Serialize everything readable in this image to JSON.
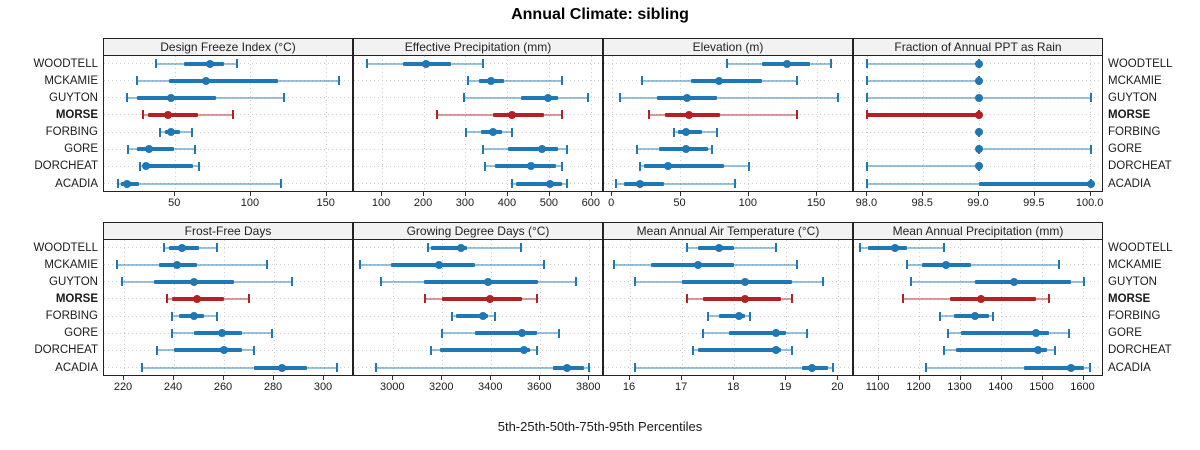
{
  "title": "Annual Climate: sibling",
  "footer": "5th-25th-50th-75th-95th Percentiles",
  "chart_data": {
    "type": "scatter",
    "subtype": "percentile-interval-dotplot",
    "title": "Annual Climate: sibling",
    "xlabel": "5th-25th-50th-75th-95th Percentiles",
    "legend_position": "none",
    "grid": "dotted",
    "percentiles": [
      "p5",
      "p25",
      "p50",
      "p75",
      "p95"
    ],
    "sites": [
      "WOODTELL",
      "MCKAMIE",
      "GUYTON",
      "MORSE",
      "FORBING",
      "GORE",
      "DORCHEAT",
      "ACADIA"
    ],
    "highlight_site": "MORSE",
    "colors": {
      "series": "#1f77b4",
      "highlight": "#b22222",
      "strip_bg": "#f2f2f2",
      "grid": "#cccccc",
      "border": "#222222"
    },
    "rows": [
      {
        "panels": [
          {
            "label": "Design Freeze Index (°C)",
            "xlim": [
              3,
              168
            ],
            "tick_values": [
              50,
              100,
              150
            ],
            "tick_labels": [
              "50",
              "100",
              "150"
            ],
            "values": {
              "WOODTELL": [
                37,
                56,
                73,
                82,
                91
              ],
              "MCKAMIE": [
                25,
                46,
                70,
                118,
                158
              ],
              "GUYTON": [
                18,
                25,
                47,
                77,
                122
              ],
              "MORSE": [
                29,
                32,
                45,
                65,
                88
              ],
              "FORBING": [
                40,
                43,
                47,
                53,
                61
              ],
              "GORE": [
                19,
                25,
                33,
                49,
                63
              ],
              "DORCHEAT": [
                27,
                29,
                31,
                62,
                66
              ],
              "ACADIA": [
                12,
                14,
                18,
                26,
                120
              ]
            }
          },
          {
            "label": "Effective Precipitation (mm)",
            "xlim": [
              33,
              629
            ],
            "tick_values": [
              100,
              200,
              300,
              400,
              500,
              600
            ],
            "tick_labels": [
              "100",
              "200",
              "300",
              "400",
              "500",
              "600"
            ],
            "values": {
              "WOODTELL": [
                65,
                150,
                205,
                265,
                340
              ],
              "MCKAMIE": [
                305,
                330,
                360,
                390,
                530
              ],
              "GUYTON": [
                295,
                430,
                495,
                520,
                590
              ],
              "MORSE": [
                230,
                365,
                410,
                485,
                530
              ],
              "FORBING": [
                300,
                335,
                365,
                385,
                410
              ],
              "GORE": [
                340,
                400,
                480,
                520,
                540
              ],
              "DORCHEAT": [
                345,
                370,
                455,
                515,
                530
              ],
              "ACADIA": [
                410,
                420,
                500,
                530,
                540
              ]
            }
          },
          {
            "label": "Elevation (m)",
            "xlim": [
              -6,
              177
            ],
            "tick_values": [
              0,
              50,
              100,
              150
            ],
            "tick_labels": [
              "0",
              "50",
              "100",
              "150"
            ],
            "values": {
              "WOODTELL": [
                84,
                110,
                128,
                145,
                160
              ],
              "MCKAMIE": [
                22,
                58,
                78,
                110,
                135
              ],
              "GUYTON": [
                6,
                33,
                55,
                77,
                165
              ],
              "MORSE": [
                27,
                39,
                56,
                79,
                135
              ],
              "FORBING": [
                45,
                48,
                54,
                66,
                77
              ],
              "GORE": [
                18,
                34,
                54,
                70,
                73
              ],
              "DORCHEAT": [
                20,
                23,
                41,
                82,
                100
              ],
              "ACADIA": [
                3,
                9,
                20,
                38,
                90
              ]
            }
          },
          {
            "label": "Fraction of Annual PPT as Rain",
            "xlim": [
              97.88,
              100.12
            ],
            "tick_values": [
              98.0,
              98.5,
              99.0,
              99.5,
              100.0
            ],
            "tick_labels": [
              "98.0",
              "98.5",
              "99.0",
              "99.5",
              "100.0"
            ],
            "values": {
              "WOODTELL": [
                98,
                99,
                99,
                99,
                99
              ],
              "MCKAMIE": [
                98,
                99,
                99,
                99,
                99
              ],
              "GUYTON": [
                98,
                99,
                99,
                99,
                100
              ],
              "MORSE": [
                98,
                98,
                99,
                99,
                99
              ],
              "FORBING": [
                99,
                99,
                99,
                99,
                99
              ],
              "GORE": [
                99,
                99,
                99,
                99,
                100
              ],
              "DORCHEAT": [
                98,
                99,
                99,
                99,
                99
              ],
              "ACADIA": [
                98,
                99,
                100,
                100,
                100
              ]
            }
          }
        ]
      },
      {
        "panels": [
          {
            "label": "Frost-Free Days",
            "xlim": [
              212,
              312
            ],
            "tick_values": [
              220,
              240,
              260,
              280,
              300
            ],
            "tick_labels": [
              "220",
              "240",
              "260",
              "280",
              "300"
            ],
            "values": {
              "WOODTELL": [
                236,
                238,
                243,
                250,
                257
              ],
              "MCKAMIE": [
                217,
                234,
                241,
                249,
                277
              ],
              "GUYTON": [
                219,
                232,
                248,
                264,
                287
              ],
              "MORSE": [
                237,
                239,
                249,
                260,
                270
              ],
              "FORBING": [
                239,
                242,
                248,
                252,
                257
              ],
              "GORE": [
                239,
                248,
                259,
                267,
                279
              ],
              "DORCHEAT": [
                233,
                240,
                260,
                267,
                272
              ],
              "ACADIA": [
                227,
                272,
                283,
                293,
                305
              ]
            }
          },
          {
            "label": "Growing Degree Days (°C)",
            "xlim": [
              2840,
              3860
            ],
            "tick_values": [
              3000,
              3200,
              3400,
              3600,
              3800
            ],
            "tick_labels": [
              "3000",
              "3200",
              "3400",
              "3600",
              "3800"
            ],
            "values": {
              "WOODTELL": [
                3140,
                3155,
                3275,
                3300,
                3520
              ],
              "MCKAMIE": [
                2865,
                2990,
                3185,
                3335,
                3615
              ],
              "GUYTON": [
                2950,
                3125,
                3385,
                3590,
                3745
              ],
              "MORSE": [
                3130,
                3200,
                3395,
                3525,
                3585
              ],
              "FORBING": [
                3240,
                3255,
                3365,
                3385,
                3415
              ],
              "GORE": [
                3200,
                3335,
                3525,
                3585,
                3675
              ],
              "DORCHEAT": [
                3155,
                3190,
                3535,
                3560,
                3585
              ],
              "ACADIA": [
                2930,
                3650,
                3710,
                3780,
                3800
              ]
            }
          },
          {
            "label": "Mean Annual Air Temperature (°C)",
            "xlim": [
              15.5,
              20.3
            ],
            "tick_values": [
              16,
              17,
              18,
              19,
              20
            ],
            "tick_labels": [
              "16",
              "17",
              "18",
              "19",
              "20"
            ],
            "values": {
              "WOODTELL": [
                17.1,
                17.3,
                17.7,
                18.0,
                18.8
              ],
              "MCKAMIE": [
                15.7,
                16.4,
                17.3,
                18.0,
                19.2
              ],
              "GUYTON": [
                16.1,
                17.0,
                18.2,
                19.1,
                19.7
              ],
              "MORSE": [
                17.1,
                17.4,
                18.2,
                18.9,
                19.1
              ],
              "FORBING": [
                17.5,
                17.7,
                18.1,
                18.2,
                18.3
              ],
              "GORE": [
                17.4,
                17.9,
                18.8,
                19.0,
                19.4
              ],
              "DORCHEAT": [
                17.2,
                17.3,
                18.8,
                18.9,
                19.1
              ],
              "ACADIA": [
                16.1,
                19.3,
                19.5,
                19.8,
                19.9
              ]
            }
          },
          {
            "label": "Mean Annual Precipitation (mm)",
            "xlim": [
              1040,
              1650
            ],
            "tick_values": [
              1100,
              1200,
              1300,
              1400,
              1500,
              1600
            ],
            "tick_labels": [
              "1100",
              "1200",
              "1300",
              "1400",
              "1500",
              "1600"
            ],
            "values": {
              "WOODTELL": [
                1055,
                1075,
                1140,
                1170,
                1260
              ],
              "MCKAMIE": [
                1170,
                1205,
                1265,
                1325,
                1540
              ],
              "GUYTON": [
                1180,
                1335,
                1430,
                1570,
                1600
              ],
              "MORSE": [
                1160,
                1275,
                1350,
                1485,
                1515
              ],
              "FORBING": [
                1250,
                1285,
                1335,
                1370,
                1380
              ],
              "GORE": [
                1270,
                1300,
                1485,
                1515,
                1565
              ],
              "DORCHEAT": [
                1260,
                1290,
                1490,
                1510,
                1530
              ],
              "ACADIA": [
                1215,
                1455,
                1570,
                1600,
                1615
              ]
            }
          }
        ]
      }
    ]
  }
}
